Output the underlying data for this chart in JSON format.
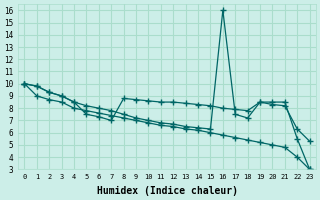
{
  "xlabel": "Humidex (Indice chaleur)",
  "ylabel": "",
  "bg_color": "#cceee8",
  "grid_color": "#aaddcc",
  "line_color": "#006666",
  "xlim": [
    -0.5,
    23.5
  ],
  "ylim": [
    3,
    16.5
  ],
  "xticks": [
    0,
    1,
    2,
    3,
    4,
    5,
    6,
    7,
    8,
    9,
    10,
    11,
    12,
    13,
    14,
    15,
    16,
    17,
    18,
    19,
    20,
    21,
    22,
    23
  ],
  "yticks": [
    3,
    4,
    5,
    6,
    7,
    8,
    9,
    10,
    11,
    12,
    13,
    14,
    15,
    16
  ],
  "line1_x": [
    0,
    1,
    2,
    3,
    4,
    5,
    6,
    7,
    8,
    9,
    10,
    11,
    12,
    13,
    14,
    15,
    16,
    17,
    18,
    19,
    20,
    21,
    22,
    23
  ],
  "line1_y": [
    10.0,
    9.8,
    9.3,
    9.0,
    8.5,
    8.2,
    8.0,
    7.8,
    7.5,
    7.2,
    7.0,
    6.8,
    6.7,
    6.5,
    6.4,
    6.3,
    16.0,
    7.5,
    7.2,
    8.5,
    8.3,
    8.2,
    6.3,
    5.3
  ],
  "line2_x": [
    0,
    1,
    2,
    3,
    4,
    5,
    6,
    7,
    8,
    9,
    10,
    11,
    12,
    13,
    14,
    15,
    16,
    17,
    18,
    19,
    20,
    21,
    22,
    23
  ],
  "line2_y": [
    10.0,
    9.8,
    9.3,
    9.0,
    8.5,
    7.5,
    7.3,
    7.0,
    8.8,
    8.7,
    8.6,
    8.5,
    8.5,
    8.4,
    8.3,
    8.2,
    8.0,
    7.9,
    7.8,
    8.5,
    8.5,
    8.5,
    5.5,
    3.0
  ],
  "line3_x": [
    0,
    1,
    2,
    3,
    4,
    5,
    6,
    7,
    8,
    9,
    10,
    11,
    12,
    13,
    14,
    15,
    16,
    17,
    18,
    19,
    20,
    21,
    22,
    23
  ],
  "line3_y": [
    10.0,
    9.0,
    8.7,
    8.5,
    8.0,
    7.8,
    7.6,
    7.4,
    7.2,
    7.0,
    6.8,
    6.6,
    6.5,
    6.3,
    6.2,
    6.0,
    5.8,
    5.6,
    5.4,
    5.2,
    5.0,
    4.8,
    4.0,
    3.0
  ]
}
